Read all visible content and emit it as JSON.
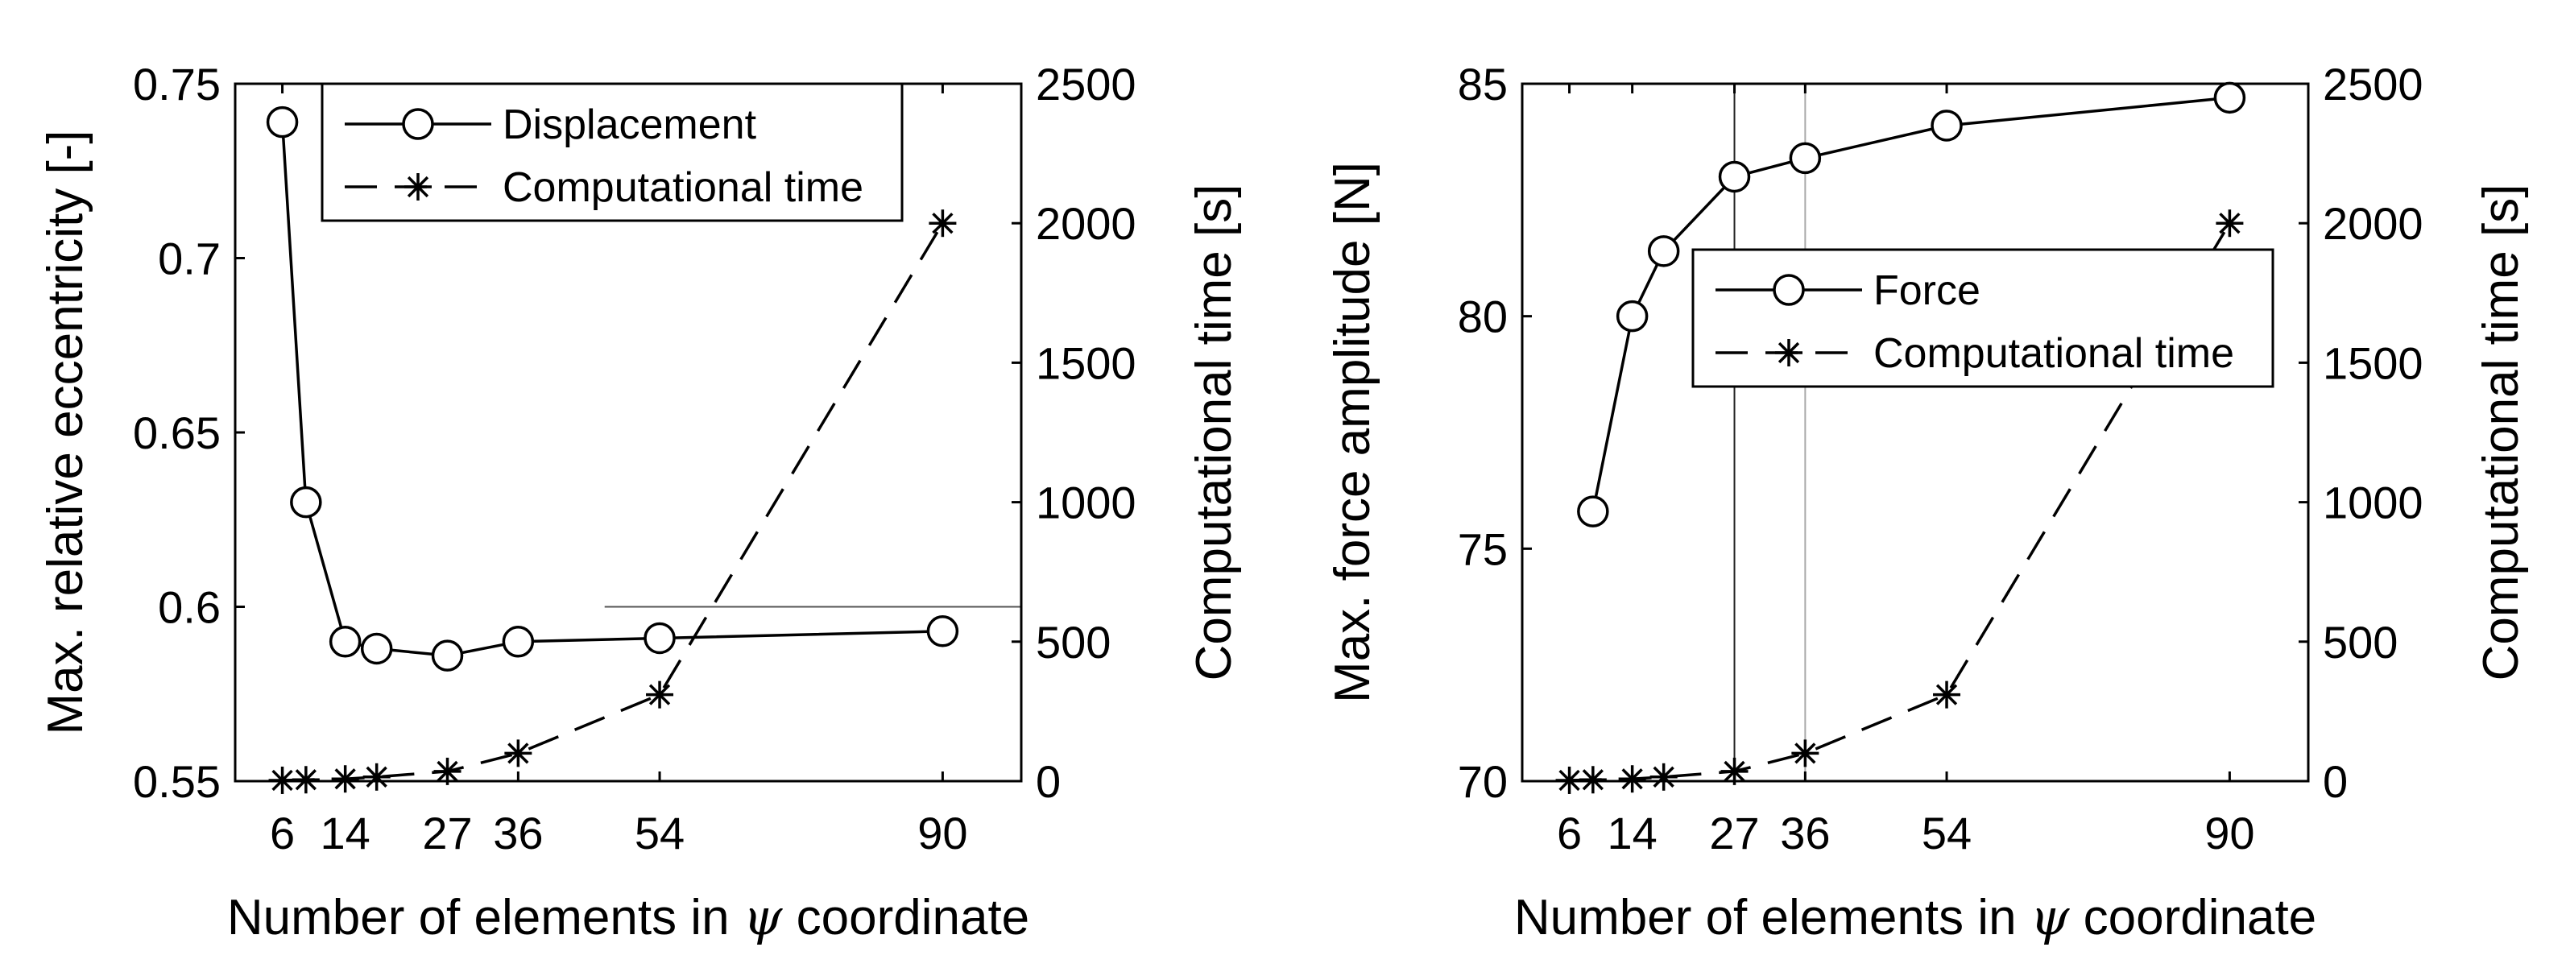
{
  "chart_data": [
    {
      "type": "line",
      "xlabel_prefix": "Number of elements in ",
      "xlabel_symbol": "ψ",
      "xlabel_suffix": " coordinate",
      "ylabel_left": "Max. relative eccentricity [-]",
      "ylabel_right": "Computational time [s]",
      "xticks": [
        6,
        14,
        27,
        36,
        54,
        90
      ],
      "xlim": [
        0,
        100
      ],
      "ylim_left": [
        0.55,
        0.75
      ],
      "yticks_left": [
        "0.55",
        "0.6",
        "0.65",
        "0.7",
        "0.75"
      ],
      "ylim_right": [
        0,
        2500
      ],
      "yticks_right": [
        "0",
        "500",
        "1000",
        "1500",
        "2000",
        "2500"
      ],
      "legend_position": "top-center",
      "series": [
        {
          "name": "Displacement",
          "axis": "left",
          "style": "solid-circle",
          "x": [
            6,
            9,
            14,
            18,
            27,
            36,
            54,
            90
          ],
          "y": [
            0.739,
            0.63,
            0.59,
            0.588,
            0.586,
            0.59,
            0.591,
            0.593
          ]
        },
        {
          "name": "Computational time",
          "axis": "right",
          "style": "dashed-star",
          "x": [
            6,
            9,
            14,
            18,
            27,
            36,
            54,
            90
          ],
          "y": [
            3,
            5,
            8,
            15,
            35,
            100,
            310,
            2000
          ]
        }
      ]
    },
    {
      "type": "line",
      "xlabel_prefix": "Number of elements in ",
      "xlabel_symbol": "ψ",
      "xlabel_suffix": " coordinate",
      "ylabel_left": "Max. force amplitude [N]",
      "ylabel_right": "Computational time [s]",
      "xticks": [
        6,
        14,
        27,
        36,
        54,
        90
      ],
      "xlim": [
        0,
        100
      ],
      "ylim_left": [
        70,
        85
      ],
      "yticks_left": [
        "70",
        "75",
        "80",
        "85"
      ],
      "ylim_right": [
        0,
        2500
      ],
      "yticks_right": [
        "0",
        "500",
        "1000",
        "1500",
        "2000",
        "2500"
      ],
      "legend_position": "center",
      "series": [
        {
          "name": "Force",
          "axis": "left",
          "style": "solid-circle",
          "x": [
            9,
            14,
            18,
            27,
            36,
            54,
            90
          ],
          "y": [
            75.8,
            80.0,
            81.4,
            83.0,
            83.4,
            84.1,
            84.7
          ]
        },
        {
          "name": "Computational time",
          "axis": "right",
          "style": "dashed-star",
          "x": [
            6,
            9,
            14,
            18,
            27,
            36,
            54,
            90
          ],
          "y": [
            3,
            5,
            8,
            15,
            35,
            100,
            310,
            2000
          ]
        }
      ]
    }
  ]
}
